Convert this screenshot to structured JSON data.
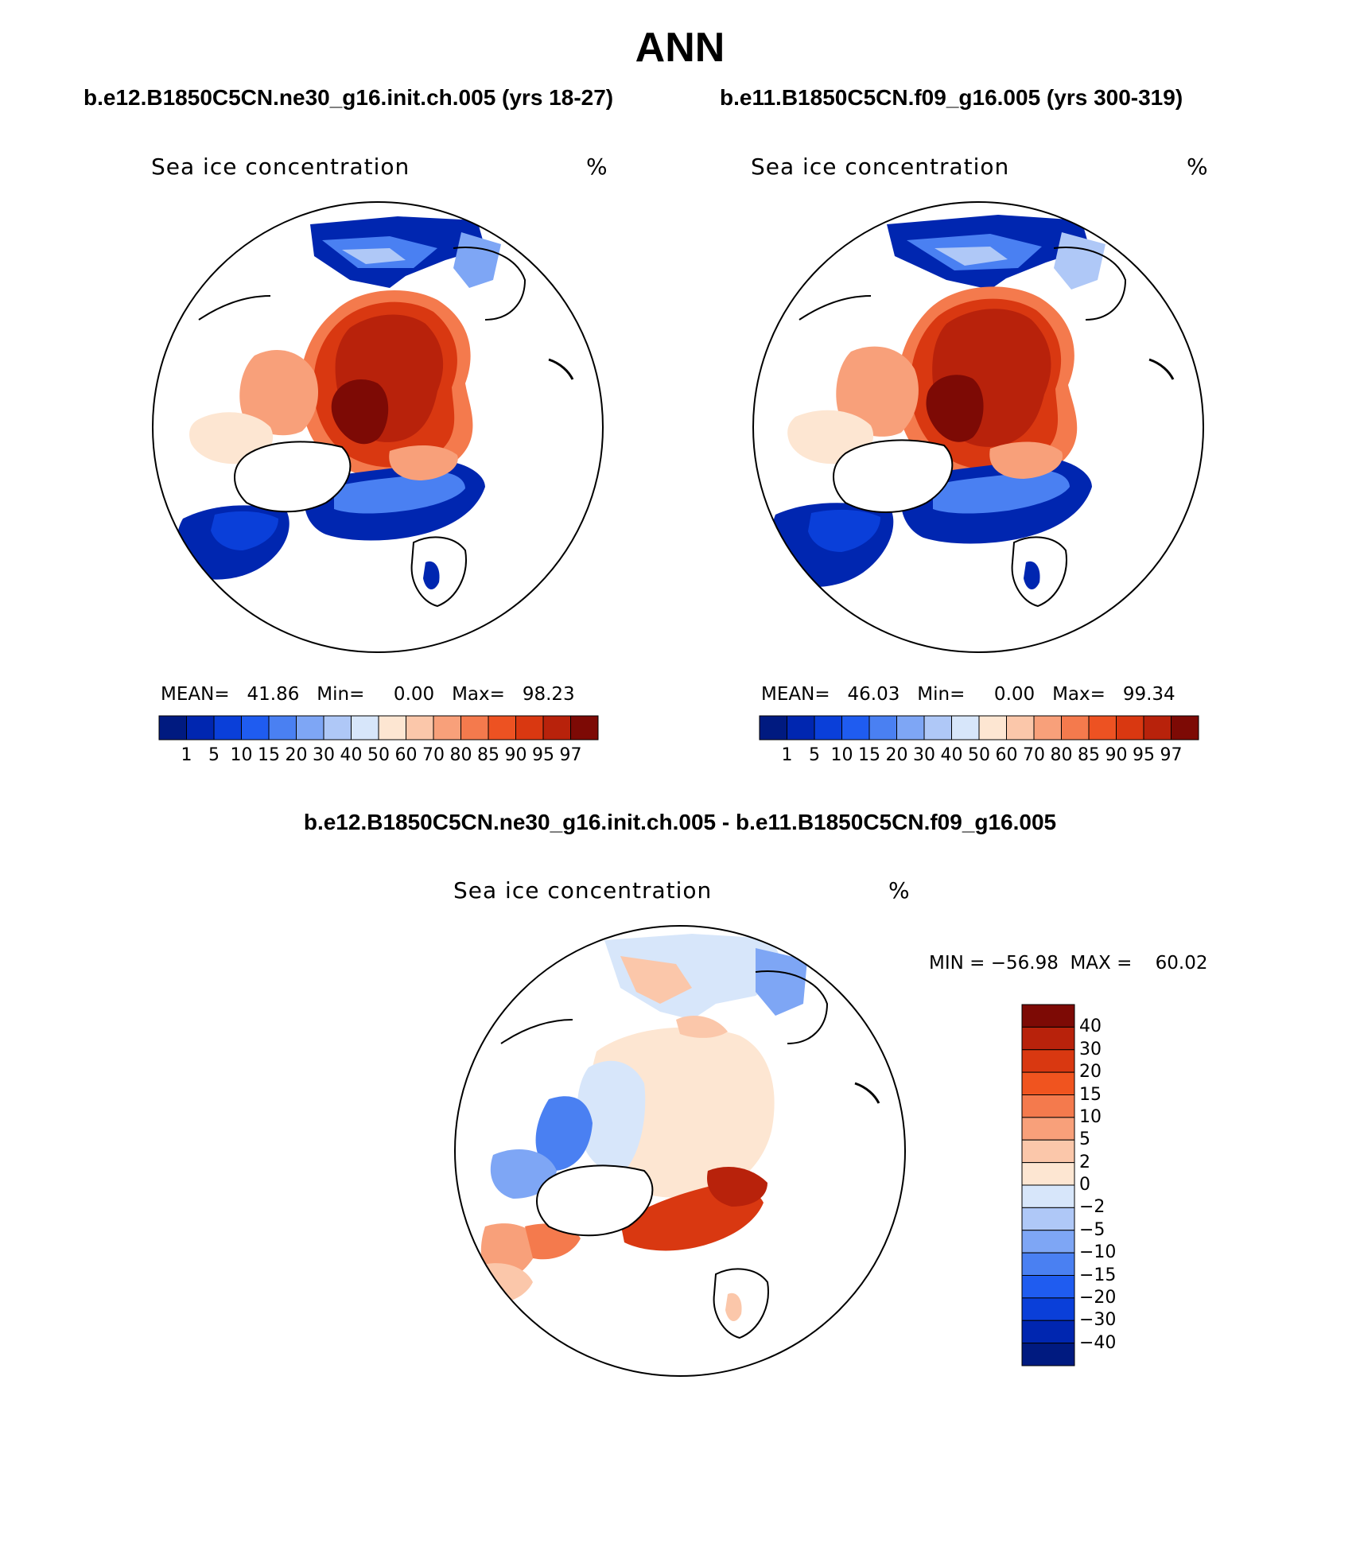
{
  "title": "ANN",
  "panels": [
    {
      "case_title": "b.e12.B1850C5CN.ne30_g16.init.ch.005 (yrs 18-27)",
      "variable": "Sea ice concentration",
      "units": "%",
      "stats_text": "MEAN=   41.86   Min=     0.00   Max=   98.23"
    },
    {
      "case_title": "b.e11.B1850C5CN.f09_g16.005 (yrs 300-319)",
      "variable": "Sea ice concentration",
      "units": "%",
      "stats_text": "MEAN=   46.03   Min=     0.00   Max=   99.34"
    }
  ],
  "diff_panel": {
    "title": "b.e12.B1850C5CN.ne30_g16.init.ch.005 - b.e11.B1850C5CN.f09_g16.005",
    "variable": "Sea ice concentration",
    "units": "%",
    "minmax_text": "MIN = −56.98  MAX =    60.02"
  },
  "colorbar_abs": {
    "levels": [
      "1",
      "5",
      "10",
      "15",
      "20",
      "30",
      "40",
      "50",
      "60",
      "70",
      "80",
      "85",
      "90",
      "95",
      "97"
    ],
    "colors": [
      "#001a80",
      "#0026b0",
      "#0a3fd9",
      "#1f5cf0",
      "#4a80f2",
      "#7ea6f5",
      "#afc8f7",
      "#d7e6fa",
      "#fde6d2",
      "#fbc7aa",
      "#f8a07a",
      "#f47a4d",
      "#ed5222",
      "#d93811",
      "#b8220b",
      "#7d0a05"
    ]
  },
  "colorbar_diff": {
    "levels": [
      "40",
      "30",
      "20",
      "15",
      "10",
      "5",
      "2",
      "0",
      "−2",
      "−5",
      "−10",
      "−15",
      "−20",
      "−30",
      "−40"
    ],
    "colors": [
      "#7d0a05",
      "#b8220b",
      "#d93811",
      "#f0541f",
      "#f47a4d",
      "#f8a07a",
      "#fbc7aa",
      "#fde6d2",
      "#d7e6fa",
      "#afc8f7",
      "#7ea6f5",
      "#4a80f2",
      "#1f5cf0",
      "#0a3fd9",
      "#0026b0",
      "#001a80"
    ]
  }
}
